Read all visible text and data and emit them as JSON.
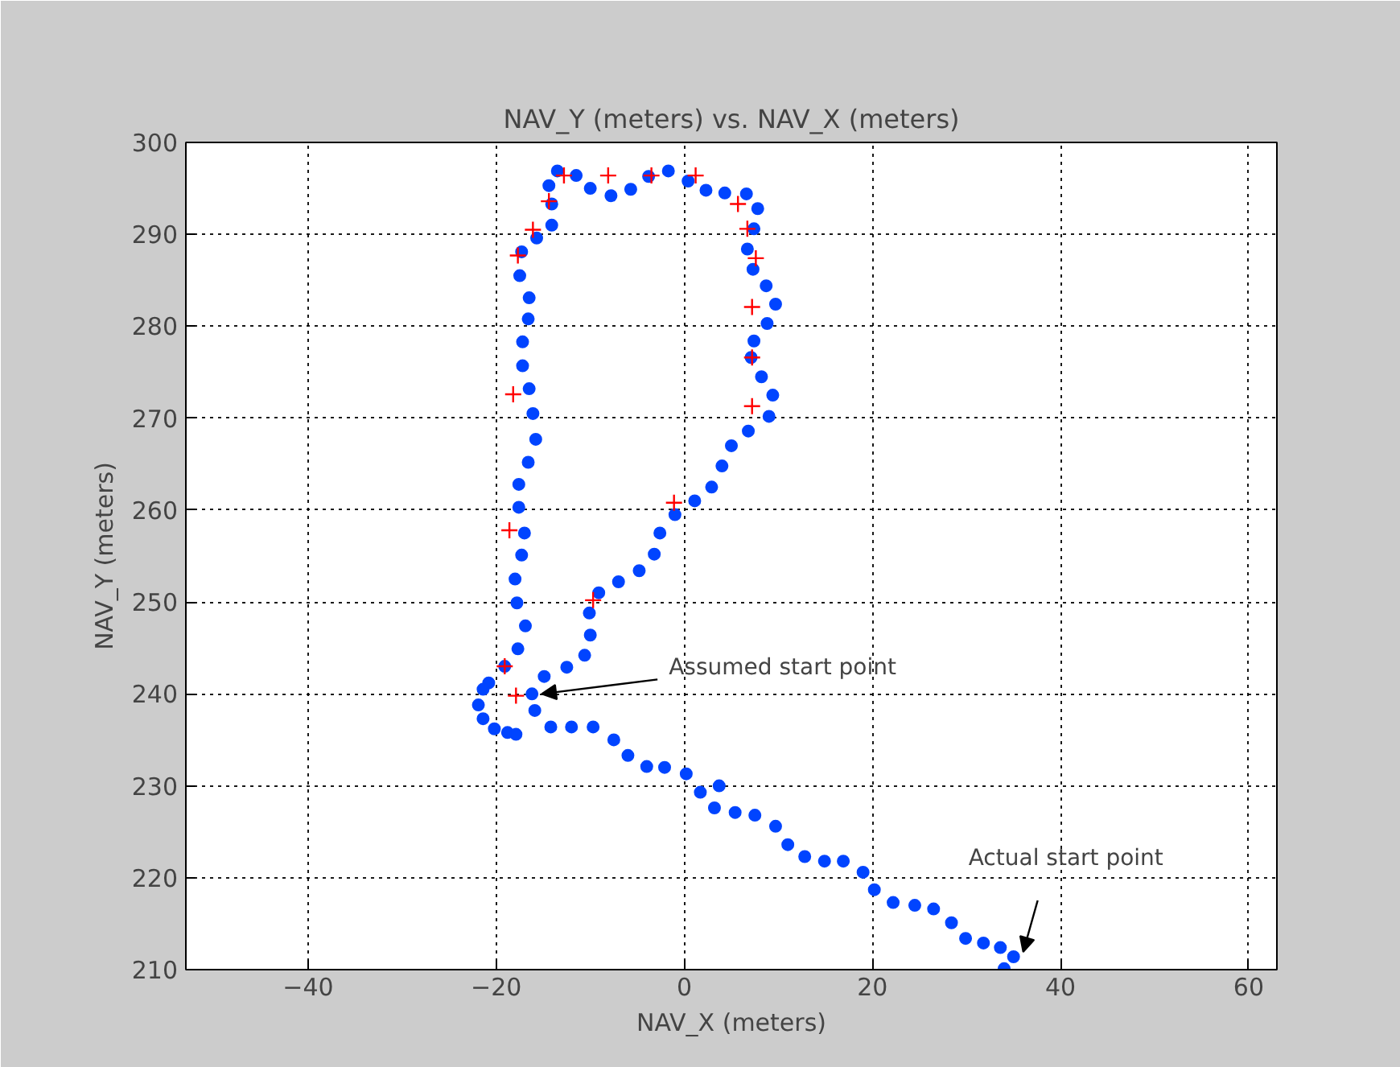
{
  "chart_data": {
    "type": "scatter",
    "title": "NAV_Y (meters) vs. NAV_X (meters)",
    "xlabel": "NAV_X (meters)",
    "ylabel": "NAV_Y (meters)",
    "xlim": [
      -53,
      63
    ],
    "ylim": [
      210,
      300
    ],
    "xticks": [
      {
        "value": -40,
        "label": "−40"
      },
      {
        "value": -20,
        "label": "−20"
      },
      0,
      20,
      40,
      60
    ],
    "yticks": [
      210,
      220,
      230,
      240,
      250,
      260,
      270,
      280,
      290,
      300
    ],
    "grid": true,
    "series": [
      {
        "color": "#0044ff",
        "marker": "circle",
        "x": [
          34.0,
          35.0,
          33.6,
          31.8,
          29.9,
          28.4,
          26.5,
          24.5,
          22.2,
          20.2,
          19.0,
          16.9,
          14.9,
          12.8,
          11.0,
          9.7,
          7.5,
          5.4,
          3.2,
          3.7,
          1.7,
          0.2,
          -2.1,
          -4.0,
          -6.0,
          -7.5,
          -9.7,
          -12.0,
          -14.2,
          -15.9,
          -16.2,
          -14.9,
          -12.5,
          -10.6,
          -10.0,
          -10.1,
          -9.1,
          -7.0,
          -4.8,
          -3.2,
          -2.6,
          -1.0,
          1.1,
          2.9,
          4.0,
          5.0,
          6.8,
          9.0,
          9.4,
          8.2,
          7.1,
          7.4,
          8.8,
          9.7,
          8.7,
          7.3,
          6.7,
          7.4,
          7.8,
          6.6,
          4.3,
          2.3,
          0.4,
          -1.7,
          -3.8,
          -5.7,
          -7.8,
          -10.0,
          -11.5,
          -13.5,
          -14.4,
          -14.1,
          -14.1,
          -15.7,
          -17.3,
          -17.5,
          -16.5,
          -16.6,
          -17.2,
          -17.2,
          -16.5,
          -16.1,
          -15.8,
          -16.6,
          -17.6,
          -17.6,
          -17.0,
          -17.3,
          -18.0,
          -17.8,
          -16.9,
          -17.7,
          -19.1,
          -20.8,
          -21.4,
          -21.9,
          -21.4,
          -20.2,
          -18.8,
          -17.9
        ],
        "values": [
          210.1,
          211.4,
          212.4,
          212.9,
          213.4,
          215.1,
          216.6,
          217.0,
          217.3,
          218.7,
          220.6,
          221.8,
          221.8,
          222.3,
          223.6,
          225.6,
          226.8,
          227.1,
          227.6,
          230.0,
          229.3,
          231.3,
          232.0,
          232.1,
          233.3,
          235.0,
          236.4,
          236.4,
          236.4,
          238.2,
          240.0,
          241.9,
          242.9,
          244.2,
          246.4,
          248.8,
          251.0,
          252.2,
          253.4,
          255.2,
          257.5,
          259.5,
          261.0,
          262.5,
          264.8,
          267.0,
          268.6,
          270.2,
          272.5,
          274.5,
          276.6,
          278.4,
          280.3,
          282.4,
          284.4,
          286.2,
          288.4,
          290.6,
          292.8,
          294.4,
          294.5,
          294.8,
          295.8,
          296.9,
          296.3,
          294.9,
          294.2,
          295.0,
          296.4,
          296.9,
          295.3,
          293.3,
          291.0,
          289.6,
          288.1,
          285.5,
          283.1,
          280.8,
          278.3,
          275.7,
          273.2,
          270.5,
          267.7,
          265.2,
          262.8,
          260.3,
          257.5,
          255.1,
          252.5,
          249.9,
          247.4,
          244.9,
          243.0,
          241.2,
          240.5,
          238.8,
          237.3,
          236.2,
          235.8,
          235.6
        ]
      },
      {
        "color": "#ff0000",
        "marker": "cross",
        "x": [
          -12.8,
          -8.1,
          -3.5,
          1.2,
          5.7,
          6.7,
          7.6,
          7.2,
          7.2,
          7.2,
          -1.1,
          -14.4,
          -16.1,
          -17.7,
          -18.2,
          -18.6,
          -9.7,
          -19.1,
          -17.9
        ],
        "values": [
          296.4,
          296.4,
          296.4,
          296.4,
          293.3,
          290.6,
          287.4,
          282.1,
          276.6,
          271.3,
          260.8,
          293.6,
          290.5,
          287.7,
          272.6,
          257.8,
          250.2,
          243.0,
          239.8
        ]
      }
    ],
    "annotations": [
      {
        "text": "Assumed start point",
        "x": -16.2,
        "y": 240.0
      },
      {
        "text": "Actual start point",
        "x": 35.0,
        "y": 211.4
      }
    ]
  }
}
